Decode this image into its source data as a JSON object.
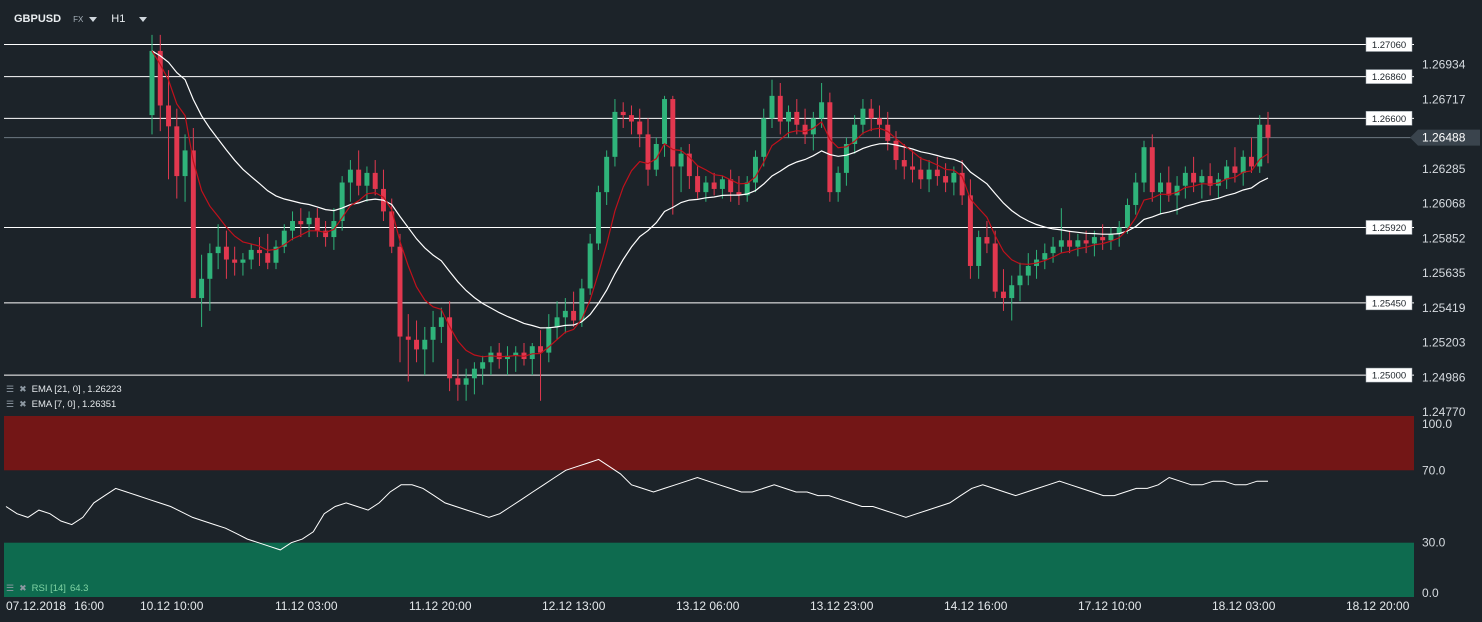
{
  "header": {
    "symbol": "GBPUSD",
    "market": "FX",
    "timeframe": "H1"
  },
  "price_axis": {
    "ticks": [
      "1.26934",
      "1.26717",
      "1.26488",
      "1.26285",
      "1.26068",
      "1.25852",
      "1.25635",
      "1.25419",
      "1.25203",
      "1.24986",
      "1.24770"
    ],
    "current_price": "1.26488"
  },
  "levels": [
    "1.27060",
    "1.26860",
    "1.26600",
    "1.25920",
    "1.25450",
    "1.25000"
  ],
  "indicators": {
    "ema21": {
      "label": "EMA",
      "params": "[21, 0]",
      "value": "1.26223",
      "color": "#ffffff"
    },
    "ema7": {
      "label": "EMA",
      "params": "[7, 0]",
      "value": "1.26351",
      "color": "#c0111c"
    },
    "rsi": {
      "label": "RSI [14]",
      "value": "64.3"
    }
  },
  "rsi_axis": {
    "ticks": [
      "100.0",
      "70.0",
      "30.0",
      "0.0"
    ]
  },
  "time_axis": [
    "07.12.2018",
    "16:00",
    "10.12 10:00",
    "11.12 03:00",
    "11.12 20:00",
    "12.12 13:00",
    "13.12 06:00",
    "13.12 23:00",
    "14.12 16:00",
    "17.12 10:00",
    "18.12 03:00",
    "18.12 20:00"
  ],
  "colors": {
    "background": "#1c2329",
    "bull": "#2fb37a",
    "bear": "#e2384f",
    "ema21": "#ffffff",
    "ema7": "#c0111c",
    "overbought_zone": "#731616",
    "oversold_zone": "#0e6b4f",
    "level_line": "#ffffff"
  },
  "chart_data": [
    {
      "type": "candlestick",
      "symbol": "GBPUSD",
      "timeframe": "H1",
      "ylim": [
        1.2477,
        1.2725
      ],
      "horizontal_levels": [
        1.2706,
        1.2686,
        1.266,
        1.2592,
        1.2545,
        1.25
      ],
      "candles": [
        [
          1.2662,
          1.2712,
          1.265,
          1.2702
        ],
        [
          1.2702,
          1.2712,
          1.2652,
          1.2668
        ],
        [
          1.2668,
          1.269,
          1.2622,
          1.2655
        ],
        [
          1.2655,
          1.2666,
          1.261,
          1.2624
        ],
        [
          1.2624,
          1.265,
          1.2608,
          1.264
        ],
        [
          1.264,
          1.2654,
          1.2548,
          1.2548
        ],
        [
          1.2548,
          1.2575,
          1.253,
          1.256
        ],
        [
          1.256,
          1.2582,
          1.254,
          1.2576
        ],
        [
          1.2576,
          1.2594,
          1.2566,
          1.258
        ],
        [
          1.258,
          1.259,
          1.256,
          1.2572
        ],
        [
          1.2572,
          1.258,
          1.2562,
          1.257
        ],
        [
          1.257,
          1.2576,
          1.2562,
          1.2572
        ],
        [
          1.2572,
          1.2582,
          1.2566,
          1.2578
        ],
        [
          1.2578,
          1.2586,
          1.2568,
          1.2576
        ],
        [
          1.2576,
          1.2588,
          1.2566,
          1.257
        ],
        [
          1.257,
          1.2584,
          1.2566,
          1.258
        ],
        [
          1.258,
          1.2594,
          1.2576,
          1.259
        ],
        [
          1.259,
          1.2602,
          1.2584,
          1.2596
        ],
        [
          1.2596,
          1.2604,
          1.2586,
          1.2594
        ],
        [
          1.2594,
          1.2602,
          1.2586,
          1.2598
        ],
        [
          1.2598,
          1.2604,
          1.2586,
          1.259
        ],
        [
          1.259,
          1.2596,
          1.258,
          1.2586
        ],
        [
          1.2586,
          1.2604,
          1.2578,
          1.2596
        ],
        [
          1.2596,
          1.2624,
          1.259,
          1.262
        ],
        [
          1.262,
          1.2634,
          1.2608,
          1.2628
        ],
        [
          1.2628,
          1.264,
          1.2612,
          1.2618
        ],
        [
          1.2618,
          1.263,
          1.2608,
          1.2626
        ],
        [
          1.2626,
          1.2634,
          1.2612,
          1.2616
        ],
        [
          1.2616,
          1.2628,
          1.2596,
          1.2602
        ],
        [
          1.2602,
          1.261,
          1.2576,
          1.258
        ],
        [
          1.258,
          1.2588,
          1.2508,
          1.2524
        ],
        [
          1.2524,
          1.2538,
          1.2496,
          1.2522
        ],
        [
          1.2522,
          1.2534,
          1.2508,
          1.2516
        ],
        [
          1.2516,
          1.253,
          1.25,
          1.2522
        ],
        [
          1.2522,
          1.254,
          1.2508,
          1.253
        ],
        [
          1.253,
          1.2542,
          1.252,
          1.2536
        ],
        [
          1.2536,
          1.2546,
          1.249,
          1.2498
        ],
        [
          1.2498,
          1.251,
          1.2484,
          1.2494
        ],
        [
          1.2494,
          1.2504,
          1.2484,
          1.2498
        ],
        [
          1.2498,
          1.2508,
          1.2488,
          1.2504
        ],
        [
          1.2504,
          1.2512,
          1.2494,
          1.2508
        ],
        [
          1.2508,
          1.2518,
          1.25,
          1.2514
        ],
        [
          1.2514,
          1.252,
          1.2504,
          1.251
        ],
        [
          1.251,
          1.2518,
          1.25,
          1.2512
        ],
        [
          1.2512,
          1.2518,
          1.2502,
          1.2514
        ],
        [
          1.2514,
          1.252,
          1.2506,
          1.251
        ],
        [
          1.251,
          1.252,
          1.25,
          1.2518
        ],
        [
          1.2518,
          1.2528,
          1.2484,
          1.2514
        ],
        [
          1.2514,
          1.2538,
          1.2508,
          1.253
        ],
        [
          1.253,
          1.2546,
          1.2522,
          1.2536
        ],
        [
          1.2536,
          1.2548,
          1.2526,
          1.254
        ],
        [
          1.254,
          1.2552,
          1.253,
          1.2534
        ],
        [
          1.2534,
          1.256,
          1.253,
          1.2554
        ],
        [
          1.2554,
          1.2588,
          1.255,
          1.2582
        ],
        [
          1.2582,
          1.2618,
          1.2578,
          1.2614
        ],
        [
          1.2614,
          1.264,
          1.2606,
          1.2636
        ],
        [
          1.2636,
          1.2672,
          1.263,
          1.2664
        ],
        [
          1.2664,
          1.267,
          1.2654,
          1.2662
        ],
        [
          1.2662,
          1.2668,
          1.265,
          1.2658
        ],
        [
          1.2658,
          1.2666,
          1.2642,
          1.265
        ],
        [
          1.265,
          1.266,
          1.2618,
          1.2628
        ],
        [
          1.2628,
          1.2648,
          1.2624,
          1.2644
        ],
        [
          1.2644,
          1.2674,
          1.2636,
          1.2672
        ],
        [
          1.2672,
          1.2674,
          1.26,
          1.263
        ],
        [
          1.263,
          1.2642,
          1.2614,
          1.2638
        ],
        [
          1.2638,
          1.2644,
          1.2616,
          1.2624
        ],
        [
          1.2624,
          1.263,
          1.261,
          1.2614
        ],
        [
          1.2614,
          1.2624,
          1.2608,
          1.262
        ],
        [
          1.262,
          1.2626,
          1.2612,
          1.2616
        ],
        [
          1.2616,
          1.2624,
          1.261,
          1.2622
        ],
        [
          1.2622,
          1.2628,
          1.2608,
          1.2614
        ],
        [
          1.2614,
          1.2624,
          1.2606,
          1.2612
        ],
        [
          1.2612,
          1.2624,
          1.2608,
          1.262
        ],
        [
          1.262,
          1.264,
          1.2614,
          1.2636
        ],
        [
          1.2636,
          1.2666,
          1.263,
          1.266
        ],
        [
          1.266,
          1.2684,
          1.2654,
          1.2674
        ],
        [
          1.2674,
          1.2682,
          1.265,
          1.2658
        ],
        [
          1.2658,
          1.2668,
          1.2648,
          1.2664
        ],
        [
          1.2664,
          1.2672,
          1.265,
          1.2656
        ],
        [
          1.2656,
          1.2666,
          1.2644,
          1.265
        ],
        [
          1.265,
          1.2664,
          1.264,
          1.266
        ],
        [
          1.266,
          1.2682,
          1.2654,
          1.267
        ],
        [
          1.267,
          1.2676,
          1.2608,
          1.2614
        ],
        [
          1.2614,
          1.263,
          1.2608,
          1.2626
        ],
        [
          1.2626,
          1.2648,
          1.2618,
          1.2644
        ],
        [
          1.2644,
          1.2662,
          1.2638,
          1.2656
        ],
        [
          1.2656,
          1.2672,
          1.265,
          1.2666
        ],
        [
          1.2666,
          1.2672,
          1.2652,
          1.266
        ],
        [
          1.266,
          1.2668,
          1.2648,
          1.2656
        ],
        [
          1.2656,
          1.2664,
          1.264,
          1.2646
        ],
        [
          1.2646,
          1.2652,
          1.2628,
          1.2634
        ],
        [
          1.2634,
          1.2644,
          1.2622,
          1.263
        ],
        [
          1.263,
          1.264,
          1.262,
          1.2628
        ],
        [
          1.2628,
          1.2636,
          1.2616,
          1.2622
        ],
        [
          1.2622,
          1.2634,
          1.2614,
          1.2628
        ],
        [
          1.2628,
          1.2636,
          1.2618,
          1.2624
        ],
        [
          1.2624,
          1.2632,
          1.2614,
          1.262
        ],
        [
          1.262,
          1.263,
          1.2612,
          1.2626
        ],
        [
          1.2626,
          1.2634,
          1.2606,
          1.2612
        ],
        [
          1.2612,
          1.2622,
          1.256,
          1.2568
        ],
        [
          1.2568,
          1.259,
          1.256,
          1.2586
        ],
        [
          1.2586,
          1.2596,
          1.2576,
          1.2582
        ],
        [
          1.2582,
          1.259,
          1.2548,
          1.2552
        ],
        [
          1.2552,
          1.2566,
          1.254,
          1.2548
        ],
        [
          1.2548,
          1.2562,
          1.2534,
          1.2556
        ],
        [
          1.2556,
          1.257,
          1.2546,
          1.2562
        ],
        [
          1.2562,
          1.2576,
          1.2556,
          1.2568
        ],
        [
          1.2568,
          1.2578,
          1.256,
          1.2572
        ],
        [
          1.2572,
          1.2582,
          1.2566,
          1.2576
        ],
        [
          1.2576,
          1.2586,
          1.257,
          1.258
        ],
        [
          1.258,
          1.2604,
          1.2576,
          1.2584
        ],
        [
          1.2584,
          1.259,
          1.2576,
          1.258
        ],
        [
          1.258,
          1.2588,
          1.2574,
          1.2584
        ],
        [
          1.2584,
          1.259,
          1.2576,
          1.2582
        ],
        [
          1.2582,
          1.259,
          1.2574,
          1.2586
        ],
        [
          1.2586,
          1.2594,
          1.2578,
          1.2584
        ],
        [
          1.2584,
          1.2592,
          1.2578,
          1.2588
        ],
        [
          1.2588,
          1.2596,
          1.258,
          1.2592
        ],
        [
          1.2592,
          1.261,
          1.2588,
          1.2606
        ],
        [
          1.2606,
          1.2626,
          1.26,
          1.262
        ],
        [
          1.262,
          1.2646,
          1.2614,
          1.2642
        ],
        [
          1.2642,
          1.265,
          1.2608,
          1.2614
        ],
        [
          1.2614,
          1.2626,
          1.26,
          1.262
        ],
        [
          1.262,
          1.263,
          1.2608,
          1.2612
        ],
        [
          1.2612,
          1.2624,
          1.26,
          1.2618
        ],
        [
          1.2618,
          1.263,
          1.261,
          1.2626
        ],
        [
          1.2626,
          1.2636,
          1.2614,
          1.262
        ],
        [
          1.262,
          1.2628,
          1.261,
          1.2624
        ],
        [
          1.2624,
          1.2632,
          1.2612,
          1.2618
        ],
        [
          1.2618,
          1.2626,
          1.261,
          1.2622
        ],
        [
          1.2622,
          1.2634,
          1.2616,
          1.263
        ],
        [
          1.263,
          1.2642,
          1.262,
          1.2626
        ],
        [
          1.2626,
          1.264,
          1.2618,
          1.2636
        ],
        [
          1.2636,
          1.2648,
          1.2626,
          1.263
        ],
        [
          1.263,
          1.2662,
          1.2626,
          1.2656
        ],
        [
          1.2656,
          1.2664,
          1.2632,
          1.2648
        ]
      ],
      "ema_21": {
        "last": 1.26223
      },
      "ema_7": {
        "last": 1.26351
      }
    },
    {
      "type": "line",
      "name": "RSI [14]",
      "ylim": [
        0,
        100
      ],
      "bands": {
        "overbought": 70,
        "oversold": 30
      },
      "values": [
        50,
        46,
        44,
        48,
        46,
        42,
        40,
        44,
        52,
        56,
        60,
        58,
        56,
        54,
        52,
        50,
        47,
        44,
        42,
        40,
        38,
        35,
        32,
        30,
        28,
        26,
        30,
        32,
        36,
        46,
        50,
        52,
        50,
        48,
        52,
        58,
        62,
        62,
        60,
        56,
        52,
        50,
        48,
        46,
        44,
        46,
        50,
        54,
        58,
        62,
        66,
        70,
        72,
        74,
        76,
        72,
        68,
        62,
        60,
        58,
        60,
        62,
        64,
        66,
        64,
        62,
        60,
        58,
        58,
        60,
        62,
        60,
        58,
        58,
        56,
        56,
        54,
        52,
        50,
        50,
        48,
        46,
        44,
        46,
        48,
        50,
        52,
        56,
        60,
        62,
        60,
        58,
        56,
        58,
        60,
        62,
        64,
        62,
        60,
        58,
        56,
        56,
        58,
        60,
        60,
        62,
        66,
        64,
        62,
        62,
        64,
        64,
        62,
        62,
        64,
        64
      ]
    }
  ]
}
